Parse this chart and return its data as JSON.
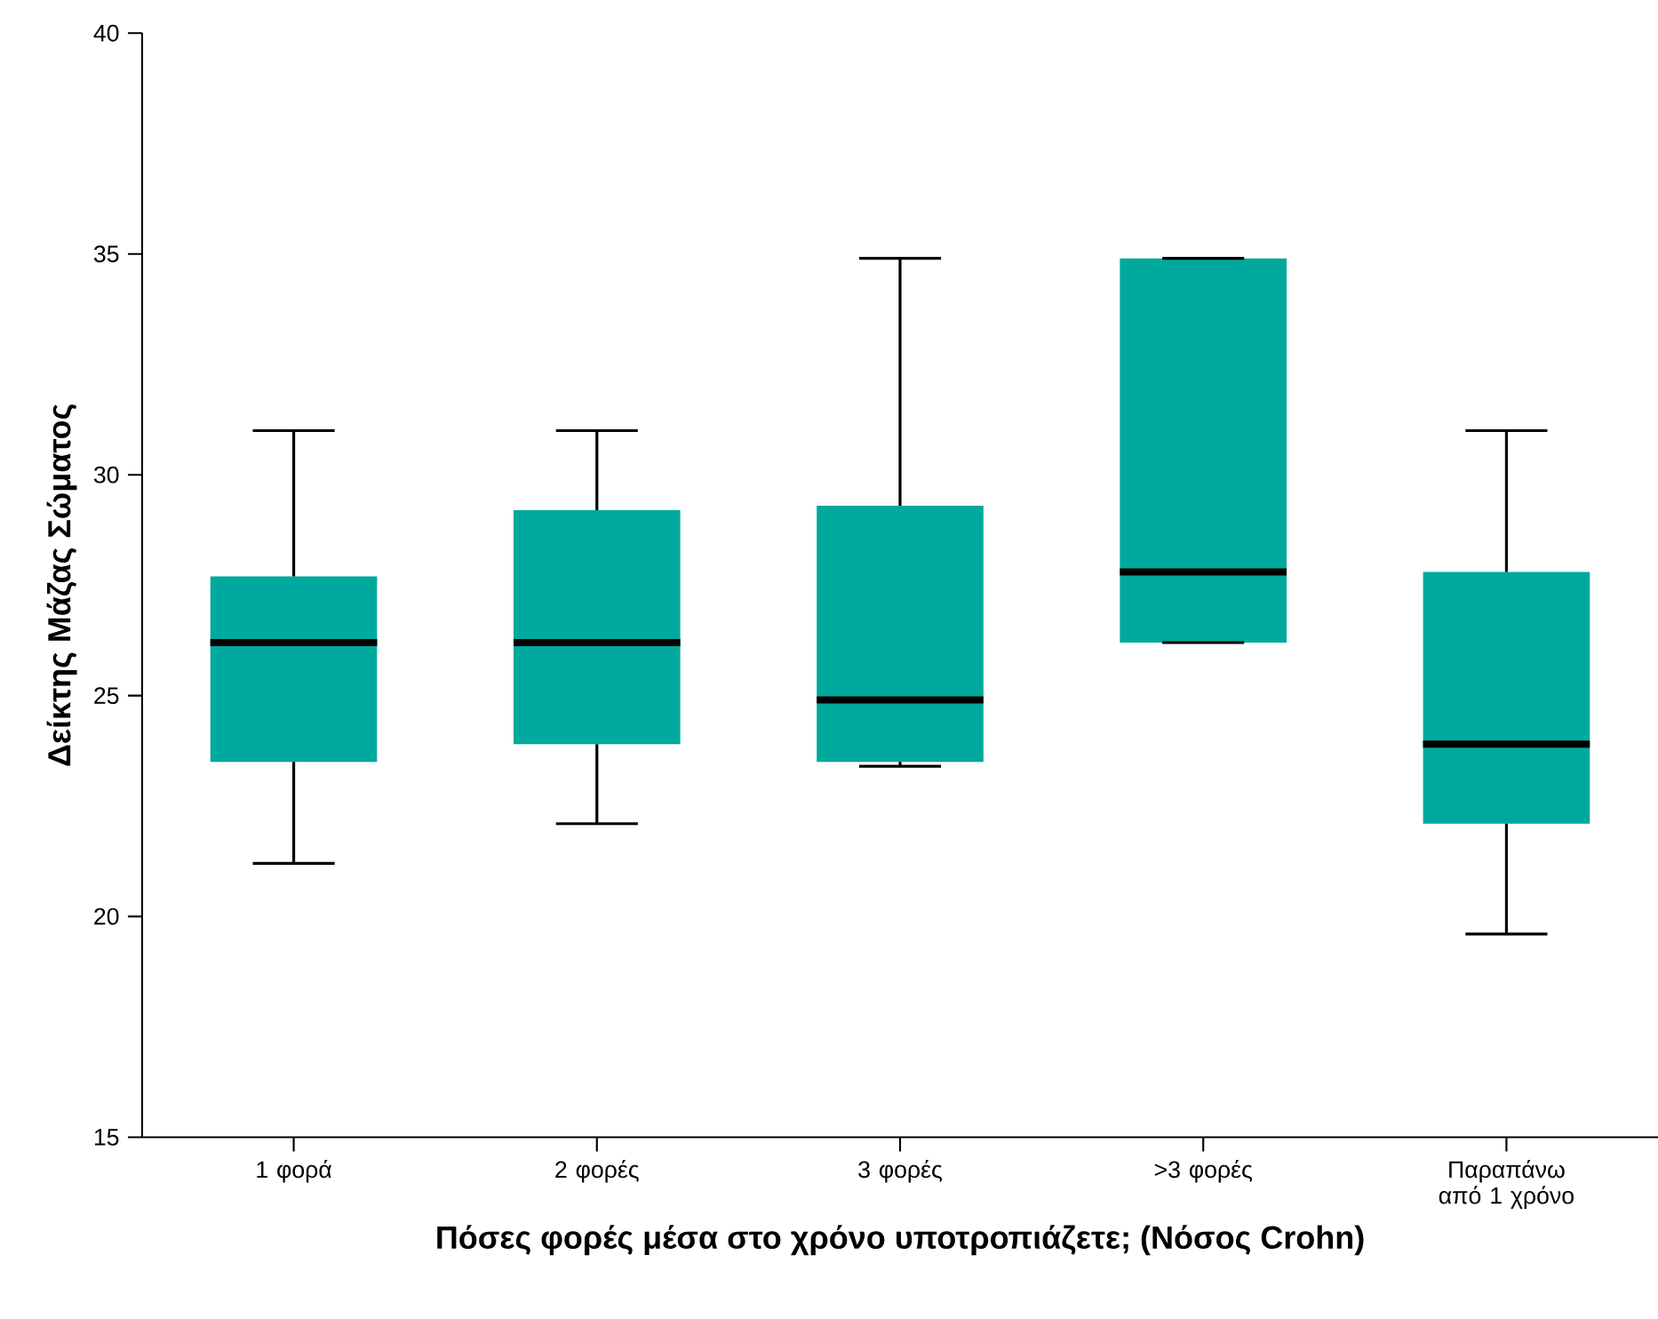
{
  "chart_data": {
    "type": "box",
    "xlabel": "Πόσες φορές μέσα στο χρόνο υποτροπιάζετε; (Νόσος Crohn)",
    "ylabel": "Δείκτης Μάζας Σώματος",
    "categories": [
      "1 φορά",
      "2 φορές",
      "3 φορές",
      ">3 φορές",
      "Παραπάνω από 1 χρόνο"
    ],
    "color": "#00a99d",
    "ylim": [
      15,
      40
    ],
    "yticks": [
      15,
      20,
      25,
      30,
      35,
      40
    ],
    "grid": false,
    "boxes": [
      {
        "low": 21.2,
        "q1": 23.5,
        "median": 26.2,
        "q3": 27.7,
        "high": 31
      },
      {
        "low": 22.1,
        "q1": 23.9,
        "median": 26.2,
        "q3": 29.2,
        "high": 31
      },
      {
        "low": 23.4,
        "q1": 23.5,
        "median": 24.9,
        "q3": 29.3,
        "high": 34.9
      },
      {
        "low": 26.2,
        "q1": 26.2,
        "median": 27.8,
        "q3": 34.9,
        "high": 34.9
      },
      {
        "low": 19.6,
        "q1": 22.1,
        "median": 23.9,
        "q3": 27.8,
        "high": 31
      }
    ]
  }
}
